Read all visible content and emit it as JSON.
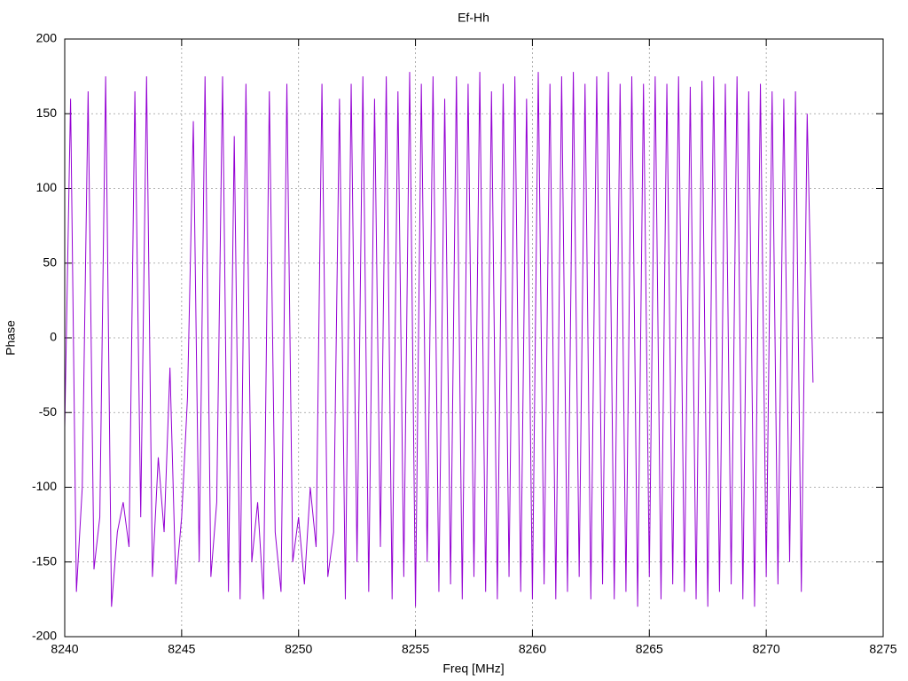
{
  "chart_data": {
    "type": "line",
    "title": "Ef-Hh",
    "x_label": "Freq [MHz]",
    "y_label": "Phase",
    "x": [
      8240,
      8240.25,
      8240.5,
      8240.75,
      8241,
      8241.25,
      8241.5,
      8241.75,
      8242,
      8242.25,
      8242.5,
      8242.75,
      8243,
      8243.25,
      8243.5,
      8243.75,
      8244,
      8244.25,
      8244.5,
      8244.75,
      8245,
      8245.25,
      8245.5,
      8245.75,
      8246,
      8246.25,
      8246.5,
      8246.75,
      8247,
      8247.25,
      8247.5,
      8247.75,
      8248,
      8248.25,
      8248.5,
      8248.75,
      8249,
      8249.25,
      8249.5,
      8249.75,
      8250,
      8250.25,
      8250.5,
      8250.75,
      8251,
      8251.25,
      8251.5,
      8251.75,
      8252,
      8252.25,
      8252.5,
      8252.75,
      8253,
      8253.25,
      8253.5,
      8253.75,
      8254,
      8254.25,
      8254.5,
      8254.75,
      8255,
      8255.25,
      8255.5,
      8255.75,
      8256,
      8256.25,
      8256.5,
      8256.75,
      8257,
      8257.25,
      8257.5,
      8257.75,
      8258,
      8258.25,
      8258.5,
      8258.75,
      8259,
      8259.25,
      8259.5,
      8259.75,
      8260,
      8260.25,
      8260.5,
      8260.75,
      8261,
      8261.25,
      8261.5,
      8261.75,
      8262,
      8262.25,
      8262.5,
      8262.75,
      8263,
      8263.25,
      8263.5,
      8263.75,
      8264,
      8264.25,
      8264.5,
      8264.75,
      8265,
      8265.25,
      8265.5,
      8265.75,
      8266,
      8266.25,
      8266.5,
      8266.75,
      8267,
      8267.25,
      8267.5,
      8267.75,
      8268,
      8268.25,
      8268.5,
      8268.75,
      8269,
      8269.25,
      8269.5,
      8269.75,
      8270,
      8270.25,
      8270.5,
      8270.75,
      8271,
      8271.25,
      8271.5,
      8271.75,
      8272
    ],
    "series": [
      {
        "color": "#9400d3",
        "values": [
          -60,
          160,
          -170,
          -100,
          165,
          -155,
          -120,
          175,
          -180,
          -130,
          -110,
          -140,
          165,
          -120,
          175,
          -160,
          -80,
          -130,
          -20,
          -165,
          -120,
          -40,
          145,
          -150,
          175,
          -160,
          -110,
          175,
          -170,
          135,
          -175,
          170,
          -150,
          -110,
          -175,
          165,
          -130,
          -170,
          170,
          -150,
          -120,
          -165,
          -100,
          -140,
          170,
          -160,
          -130,
          160,
          -175,
          170,
          -150,
          175,
          -170,
          160,
          -140,
          175,
          -175,
          165,
          -160,
          178,
          -180,
          170,
          -150,
          175,
          -170,
          160,
          -165,
          175,
          -175,
          170,
          -160,
          178,
          -170,
          165,
          -175,
          170,
          -160,
          175,
          -170,
          160,
          -175,
          178,
          -165,
          170,
          -175,
          175,
          -170,
          178,
          -160,
          170,
          -175,
          175,
          -165,
          178,
          -175,
          170,
          -170,
          175,
          -180,
          170,
          -160,
          175,
          -175,
          170,
          -165,
          175,
          -170,
          168,
          -175,
          172,
          -180,
          175,
          -170,
          170,
          -165,
          175,
          -175,
          165,
          -180,
          170,
          -160,
          165,
          -165,
          160,
          -150,
          165,
          -170,
          150,
          -30
        ]
      }
    ],
    "xlim": [
      8240,
      8275
    ],
    "xticks": [
      8240,
      8245,
      8250,
      8255,
      8260,
      8265,
      8270,
      8275
    ],
    "ylim": [
      -200,
      200
    ],
    "yticks": [
      -200,
      -150,
      -100,
      -50,
      0,
      50,
      100,
      150,
      200
    ],
    "grid": true
  }
}
